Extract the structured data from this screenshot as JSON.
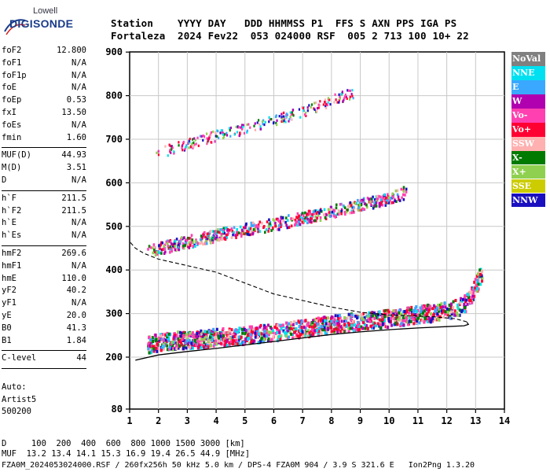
{
  "logo": {
    "top": "Lowell",
    "main": "DIGISONDE"
  },
  "header": {
    "row1": "Station    YYYY DAY   DDD HHMMSS P1  FFS S AXN PPS IGA PS",
    "row2": "Fortaleza  2024 Fev22  053 024000 RSF  005 2 713 100 10+ 22"
  },
  "params_group1": [
    {
      "label": "foF2",
      "value": "12.800"
    },
    {
      "label": "foF1",
      "value": "N/A"
    },
    {
      "label": "foF1p",
      "value": "N/A"
    },
    {
      "label": "foE",
      "value": "N/A"
    },
    {
      "label": "foEp",
      "value": "0.53"
    },
    {
      "label": "fxI",
      "value": "13.50"
    },
    {
      "label": "foEs",
      "value": "N/A"
    },
    {
      "label": "fmin",
      "value": "1.60"
    }
  ],
  "params_group2": [
    {
      "label": "MUF(D)",
      "value": "44.93"
    },
    {
      "label": "M(D)",
      "value": "3.51"
    },
    {
      "label": "D",
      "value": "N/A"
    }
  ],
  "params_group3": [
    {
      "label": "h`F",
      "value": "211.5"
    },
    {
      "label": "h`F2",
      "value": "211.5"
    },
    {
      "label": "h`E",
      "value": "N/A"
    },
    {
      "label": "h`Es",
      "value": "N/A"
    }
  ],
  "params_group4": [
    {
      "label": "hmF2",
      "value": "269.6"
    },
    {
      "label": "hmF1",
      "value": "N/A"
    },
    {
      "label": "hmE",
      "value": "110.0"
    },
    {
      "label": "yF2",
      "value": "40.2"
    },
    {
      "label": "yF1",
      "value": "N/A"
    },
    {
      "label": "yE",
      "value": "20.0"
    },
    {
      "label": "B0",
      "value": "41.3"
    },
    {
      "label": "B1",
      "value": "1.84"
    }
  ],
  "params_group5": [
    {
      "label": "C-level",
      "value": "44"
    }
  ],
  "auto": {
    "line1": "Auto:",
    "line2": "Artist5",
    "line3": "500200"
  },
  "legend": [
    {
      "label": "NoVal",
      "color": "#808080"
    },
    {
      "label": "NNE",
      "color": "#00e0f0"
    },
    {
      "label": "E",
      "color": "#3aa8ff"
    },
    {
      "label": "W",
      "color": "#b000b0"
    },
    {
      "label": "Vo-",
      "color": "#ff40b0"
    },
    {
      "label": "Vo+",
      "color": "#ff0033"
    },
    {
      "label": "SSW",
      "color": "#ffb0b0"
    },
    {
      "label": "X-",
      "color": "#007a00"
    },
    {
      "label": "X+",
      "color": "#90d050"
    },
    {
      "label": "SSE",
      "color": "#cccc00"
    },
    {
      "label": "NNW",
      "color": "#1a10c0"
    }
  ],
  "footer": {
    "line1": "D     100  200  400  600  800 1000 1500 3000 [km]",
    "line2": "MUF  13.2 13.4 14.1 15.3 16.9 19.4 26.5 44.9 [MHz]",
    "line3": "FZA0M_2024053024000.RSF / 260fx256h 50 kHz 5.0 km / DPS-4 FZA0M 904 / 3.9 S 321.6 E   Ion2Png 1.3.20"
  },
  "chart_data": {
    "type": "scatter",
    "x_ticks": [
      "1",
      "2",
      "3",
      "4",
      "5",
      "6",
      "7",
      "8",
      "9",
      "10",
      "11",
      "12",
      "13",
      "14"
    ],
    "y_ticks": [
      "80",
      "200",
      "300",
      "400",
      "500",
      "600",
      "700",
      "800",
      "900"
    ],
    "xlim": [
      1,
      14
    ],
    "ylim": [
      80,
      900
    ],
    "grid": true,
    "legend_position": "right",
    "trace_1F2": [
      [
        1.6,
        220
      ],
      [
        2,
        228
      ],
      [
        3,
        233
      ],
      [
        4,
        238
      ],
      [
        5,
        243
      ],
      [
        6,
        250
      ],
      [
        7,
        258
      ],
      [
        8,
        268
      ],
      [
        9,
        275
      ],
      [
        10,
        282
      ],
      [
        11,
        290
      ],
      [
        12,
        300
      ],
      [
        12.5,
        310
      ],
      [
        12.8,
        330
      ],
      [
        13.0,
        360
      ],
      [
        13.2,
        390
      ]
    ],
    "trace_2F2": [
      [
        1.6,
        440
      ],
      [
        2,
        445
      ],
      [
        3,
        460
      ],
      [
        4,
        475
      ],
      [
        5,
        488
      ],
      [
        6,
        500
      ],
      [
        7,
        515
      ],
      [
        8,
        530
      ],
      [
        9,
        545
      ],
      [
        10,
        560
      ],
      [
        10.6,
        575
      ]
    ],
    "trace_3F2": [
      [
        1.8,
        660
      ],
      [
        2,
        665
      ],
      [
        3,
        685
      ],
      [
        4,
        705
      ],
      [
        5,
        720
      ],
      [
        6,
        740
      ],
      [
        7,
        760
      ],
      [
        8,
        785
      ],
      [
        8.8,
        805
      ]
    ],
    "profile_solid": [
      [
        1.2,
        193
      ],
      [
        2,
        205
      ],
      [
        3,
        213
      ],
      [
        4,
        220
      ],
      [
        5,
        228
      ],
      [
        6,
        236
      ],
      [
        7,
        244
      ],
      [
        8,
        252
      ],
      [
        9,
        258
      ],
      [
        10,
        263
      ],
      [
        11,
        267
      ],
      [
        12,
        270
      ],
      [
        12.6,
        272
      ],
      [
        12.75,
        275
      ],
      [
        12.7,
        280
      ]
    ],
    "profile_dashed": [
      [
        12.7,
        281
      ],
      [
        12.3,
        288
      ],
      [
        11.5,
        293
      ],
      [
        10,
        297
      ],
      [
        9,
        303
      ],
      [
        8,
        315
      ],
      [
        7,
        330
      ],
      [
        6,
        345
      ],
      [
        5,
        370
      ],
      [
        4,
        395
      ],
      [
        3,
        410
      ],
      [
        2,
        425
      ],
      [
        1.5,
        438
      ],
      [
        1.2,
        450
      ],
      [
        1.0,
        465
      ]
    ]
  }
}
